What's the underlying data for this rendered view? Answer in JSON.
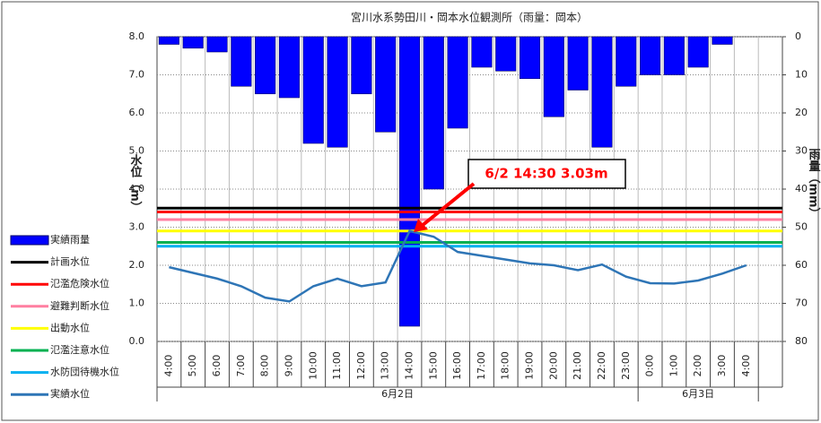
{
  "chart_data": {
    "type": "bar_line",
    "title": "宮川水系勢田川・岡本水位観測所（雨量：岡本）",
    "y_label": "水位（m）",
    "y2_label": "雨量（mm）",
    "annotation": "6/2 14:30 3.03m",
    "categories": [
      "4:00",
      "5:00",
      "6:00",
      "7:00",
      "8:00",
      "9:00",
      "10:00",
      "11:00",
      "12:00",
      "13:00",
      "14:00",
      "15:00",
      "16:00",
      "17:00",
      "18:00",
      "19:00",
      "20:00",
      "21:00",
      "22:00",
      "23:00",
      "0:00",
      "1:00",
      "2:00",
      "3:00",
      "4:00",
      null
    ],
    "x_groups": [
      "6月2日",
      "6月3日"
    ],
    "ylim": [
      0,
      8
    ],
    "yticks": [
      {
        "value": 0,
        "label": "0.0"
      },
      {
        "value": 1,
        "label": "1.0"
      },
      {
        "value": 2,
        "label": "2.0"
      },
      {
        "value": 3,
        "label": "3.0"
      },
      {
        "value": 4,
        "label": "4.0"
      },
      {
        "value": 5,
        "label": "5.0"
      },
      {
        "value": 6,
        "label": "6.0"
      },
      {
        "value": 7,
        "label": "7.0"
      },
      {
        "value": 8,
        "label": "8.0"
      }
    ],
    "y2lim": [
      0,
      80
    ],
    "y2_inverted": true,
    "y2ticks": [
      0,
      10,
      20,
      30,
      40,
      50,
      60,
      70,
      80
    ],
    "grid": true,
    "series": [
      {
        "name": "実績雨量",
        "type": "bar",
        "axis": "y2",
        "color": "#0000ff",
        "values": [
          2,
          3,
          4,
          13,
          15,
          16,
          28,
          29,
          15,
          25,
          76,
          40,
          24,
          8,
          9,
          11,
          21,
          14,
          29,
          13,
          10,
          10,
          8,
          2,
          0,
          null
        ]
      },
      {
        "name": "実績水位",
        "type": "line",
        "color": "#2e75b6",
        "values": [
          1.95,
          1.8,
          1.65,
          1.45,
          1.15,
          1.05,
          1.45,
          1.65,
          1.45,
          1.55,
          2.9,
          2.75,
          2.35,
          2.25,
          2.15,
          2.05,
          2.0,
          1.87,
          2.02,
          1.7,
          1.53,
          1.52,
          1.6,
          1.78,
          2.0,
          null
        ]
      }
    ],
    "reference_lines": [
      {
        "name": "計画水位",
        "color": "#000000",
        "value": 3.5
      },
      {
        "name": "氾濫危険水位",
        "color": "#ff0000",
        "value": 3.4
      },
      {
        "name": "避難判断水位",
        "color": "#ff7fa0",
        "value": 3.2
      },
      {
        "name": "出動水位",
        "color": "#ffff00",
        "value": 2.9
      },
      {
        "name": "氾濫注意水位",
        "color": "#00b050",
        "value": 2.6
      },
      {
        "name": "水防団待機水位",
        "color": "#00b0f0",
        "value": 2.5
      }
    ]
  }
}
